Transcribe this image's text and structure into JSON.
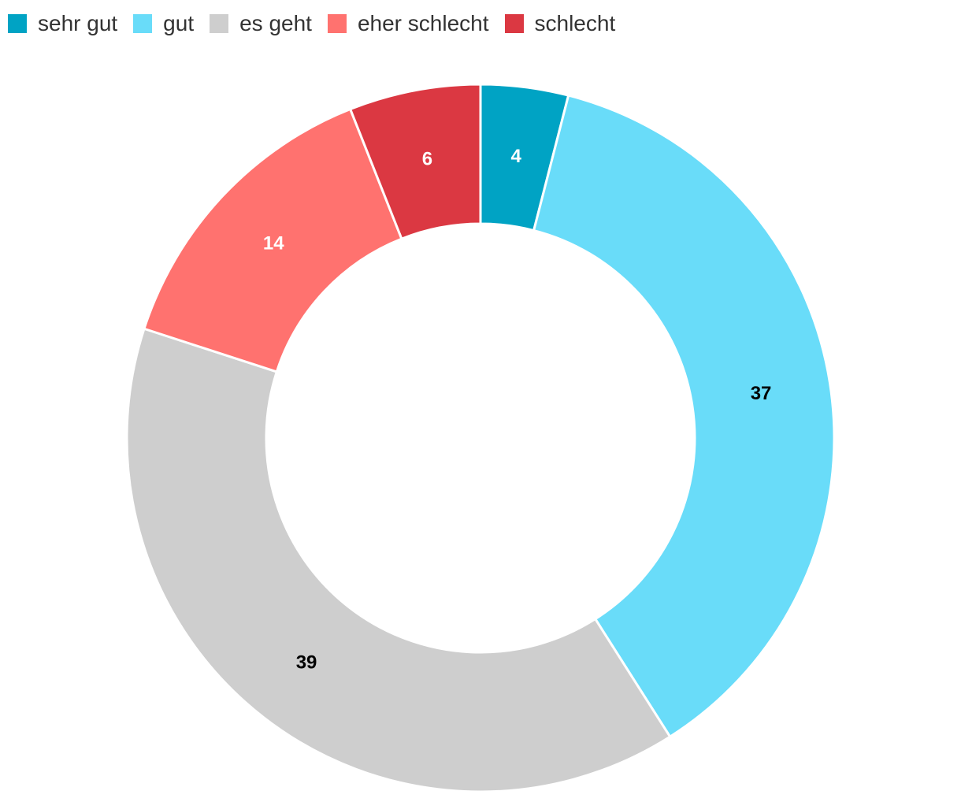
{
  "chart_data": {
    "type": "pie",
    "variant": "donut",
    "categories": [
      "sehr gut",
      "gut",
      "es geht",
      "eher schlecht",
      "schlecht"
    ],
    "values": [
      4,
      37,
      39,
      14,
      6
    ],
    "colors": [
      "#00a3c4",
      "#69dcf9",
      "#cecece",
      "#ff726f",
      "#db3842"
    ],
    "label_colors": [
      "#ffffff",
      "#000000",
      "#000000",
      "#ffffff",
      "#ffffff"
    ],
    "legend_position": "top-left",
    "title": "",
    "xlabel": "",
    "ylabel": ""
  },
  "legend": {
    "items": [
      {
        "label": "sehr gut",
        "color": "#00a3c4"
      },
      {
        "label": "gut",
        "color": "#69dcf9"
      },
      {
        "label": "es geht",
        "color": "#cecece"
      },
      {
        "label": "eher schlecht",
        "color": "#ff726f"
      },
      {
        "label": "schlecht",
        "color": "#db3842"
      }
    ]
  }
}
